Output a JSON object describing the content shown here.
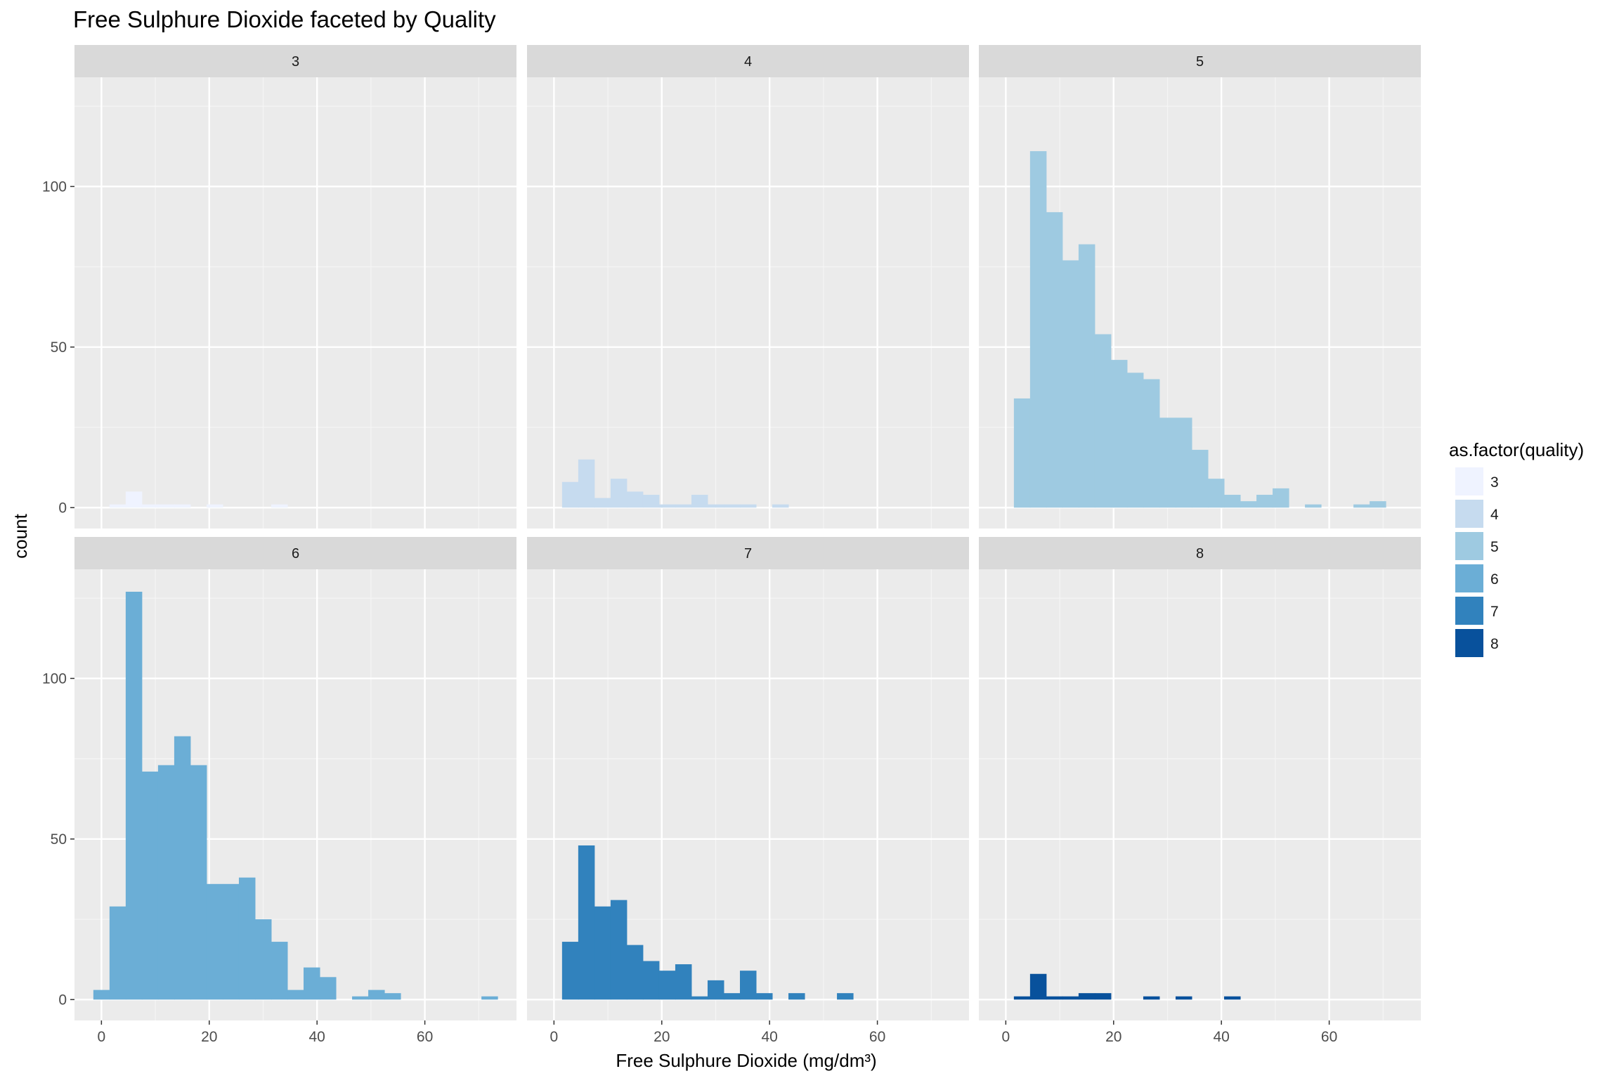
{
  "chart_data": {
    "type": "bar",
    "title": "Free Sulphure Dioxide faceted by Quality",
    "xlabel": "Free Sulphure Dioxide (mg/dm³)",
    "ylabel": "count",
    "xlim": [
      -5,
      77
    ],
    "ylim": [
      -6.5,
      134
    ],
    "x_ticks": [
      0,
      20,
      40,
      60
    ],
    "y_ticks": [
      0,
      50,
      100
    ],
    "grid": true,
    "bin_width": 3,
    "legend": {
      "title": "as.factor(quality)",
      "position": "right",
      "entries": [
        {
          "label": "3",
          "color": "#eff3ff"
        },
        {
          "label": "4",
          "color": "#c6dbef"
        },
        {
          "label": "5",
          "color": "#9ecae1"
        },
        {
          "label": "6",
          "color": "#6baed6"
        },
        {
          "label": "7",
          "color": "#3182bd"
        },
        {
          "label": "8",
          "color": "#08519c"
        }
      ]
    },
    "facets": [
      {
        "label": "3",
        "color": "#eff3ff",
        "bins": [
          [
            3,
            1
          ],
          [
            6,
            5
          ],
          [
            9,
            1
          ],
          [
            12,
            1
          ],
          [
            15,
            1
          ],
          [
            21,
            1
          ],
          [
            33,
            1
          ]
        ]
      },
      {
        "label": "4",
        "color": "#c6dbef",
        "bins": [
          [
            3,
            8
          ],
          [
            6,
            15
          ],
          [
            9,
            3
          ],
          [
            12,
            9
          ],
          [
            15,
            5
          ],
          [
            18,
            4
          ],
          [
            21,
            1
          ],
          [
            24,
            1
          ],
          [
            27,
            4
          ],
          [
            30,
            1
          ],
          [
            33,
            1
          ],
          [
            36,
            1
          ],
          [
            42,
            1
          ]
        ]
      },
      {
        "label": "5",
        "color": "#9ecae1",
        "bins": [
          [
            3,
            34
          ],
          [
            6,
            111
          ],
          [
            9,
            92
          ],
          [
            12,
            77
          ],
          [
            15,
            82
          ],
          [
            18,
            54
          ],
          [
            21,
            46
          ],
          [
            24,
            42
          ],
          [
            27,
            40
          ],
          [
            30,
            28
          ],
          [
            33,
            28
          ],
          [
            36,
            18
          ],
          [
            39,
            9
          ],
          [
            42,
            4
          ],
          [
            45,
            2
          ],
          [
            48,
            4
          ],
          [
            51,
            6
          ],
          [
            57,
            1
          ],
          [
            66,
            1
          ],
          [
            69,
            2
          ]
        ]
      },
      {
        "label": "6",
        "color": "#6baed6",
        "bins": [
          [
            0,
            3
          ],
          [
            3,
            29
          ],
          [
            6,
            127
          ],
          [
            9,
            71
          ],
          [
            12,
            73
          ],
          [
            15,
            82
          ],
          [
            18,
            73
          ],
          [
            21,
            36
          ],
          [
            24,
            36
          ],
          [
            27,
            38
          ],
          [
            30,
            25
          ],
          [
            33,
            18
          ],
          [
            36,
            3
          ],
          [
            39,
            10
          ],
          [
            42,
            7
          ],
          [
            48,
            1
          ],
          [
            51,
            3
          ],
          [
            54,
            2
          ],
          [
            72,
            1
          ]
        ]
      },
      {
        "label": "7",
        "color": "#3182bd",
        "bins": [
          [
            3,
            18
          ],
          [
            6,
            48
          ],
          [
            9,
            29
          ],
          [
            12,
            31
          ],
          [
            15,
            17
          ],
          [
            18,
            12
          ],
          [
            21,
            9
          ],
          [
            24,
            11
          ],
          [
            27,
            1
          ],
          [
            30,
            6
          ],
          [
            33,
            2
          ],
          [
            36,
            9
          ],
          [
            39,
            2
          ],
          [
            45,
            2
          ],
          [
            54,
            2
          ]
        ]
      },
      {
        "label": "8",
        "color": "#08519c",
        "bins": [
          [
            3,
            1
          ],
          [
            6,
            8
          ],
          [
            9,
            1
          ],
          [
            12,
            1
          ],
          [
            15,
            2
          ],
          [
            18,
            2
          ],
          [
            27,
            1
          ],
          [
            33,
            1
          ],
          [
            42,
            1
          ]
        ]
      }
    ]
  }
}
